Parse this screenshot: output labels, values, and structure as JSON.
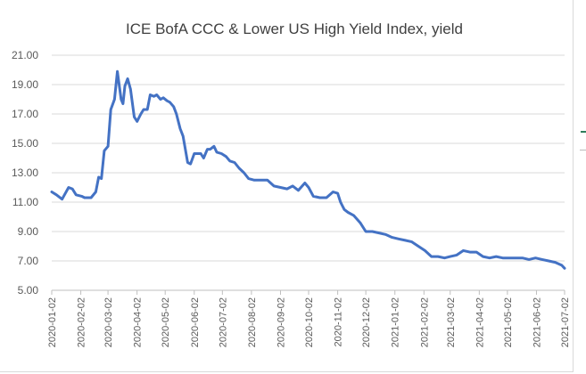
{
  "chart_data": {
    "type": "line",
    "title": "ICE BofA CCC & Lower US High Yield Index, yield",
    "xlabel": "",
    "ylabel": "",
    "ylim": [
      5.0,
      21.0
    ],
    "y_ticks": [
      "5.00",
      "7.00",
      "9.00",
      "11.00",
      "13.00",
      "15.00",
      "17.00",
      "19.00",
      "21.00"
    ],
    "x_ticks": [
      "2020-01-02",
      "2020-02-02",
      "2020-03-02",
      "2020-04-02",
      "2020-05-02",
      "2020-06-02",
      "2020-07-02",
      "2020-08-02",
      "2020-09-02",
      "2020-10-02",
      "2020-11-02",
      "2020-12-02",
      "2021-01-02",
      "2021-02-02",
      "2021-03-02",
      "2021-04-02",
      "2021-05-02",
      "2021-06-02",
      "2021-07-02"
    ],
    "xlim": [
      "2020-01-02",
      "2021-07-02"
    ],
    "grid": "horizontal",
    "series_color": "#4472c4",
    "series": [
      {
        "x": [
          "2020-01-02",
          "2020-01-07",
          "2020-01-13",
          "2020-01-20",
          "2020-01-24",
          "2020-01-28",
          "2020-02-03",
          "2020-02-06",
          "2020-02-10",
          "2020-02-13",
          "2020-02-18",
          "2020-02-21",
          "2020-02-24",
          "2020-02-27",
          "2020-03-02",
          "2020-03-05",
          "2020-03-09",
          "2020-03-12",
          "2020-03-16",
          "2020-03-18",
          "2020-03-20",
          "2020-03-23",
          "2020-03-26",
          "2020-03-30",
          "2020-04-02",
          "2020-04-06",
          "2020-04-09",
          "2020-04-13",
          "2020-04-16",
          "2020-04-20",
          "2020-04-23",
          "2020-04-27",
          "2020-04-30",
          "2020-05-04",
          "2020-05-07",
          "2020-05-11",
          "2020-05-14",
          "2020-05-18",
          "2020-05-21",
          "2020-05-26",
          "2020-05-29",
          "2020-06-02",
          "2020-06-05",
          "2020-06-09",
          "2020-06-12",
          "2020-06-16",
          "2020-06-19",
          "2020-06-23",
          "2020-06-26",
          "2020-07-01",
          "2020-07-06",
          "2020-07-10",
          "2020-07-15",
          "2020-07-20",
          "2020-07-25",
          "2020-07-30",
          "2020-08-05",
          "2020-08-12",
          "2020-08-19",
          "2020-08-26",
          "2020-09-02",
          "2020-09-09",
          "2020-09-15",
          "2020-09-21",
          "2020-09-28",
          "2020-10-02",
          "2020-10-07",
          "2020-10-14",
          "2020-10-21",
          "2020-10-28",
          "2020-11-02",
          "2020-11-05",
          "2020-11-09",
          "2020-11-13",
          "2020-11-19",
          "2020-11-26",
          "2020-12-02",
          "2020-12-09",
          "2020-12-16",
          "2020-12-23",
          "2020-12-30",
          "2021-01-06",
          "2021-01-13",
          "2021-01-20",
          "2021-01-27",
          "2021-02-03",
          "2021-02-10",
          "2021-02-17",
          "2021-02-24",
          "2021-03-02",
          "2021-03-09",
          "2021-03-16",
          "2021-03-23",
          "2021-03-30",
          "2021-04-06",
          "2021-04-13",
          "2021-04-20",
          "2021-04-27",
          "2021-05-04",
          "2021-05-11",
          "2021-05-18",
          "2021-05-25",
          "2021-06-01",
          "2021-06-08",
          "2021-06-15",
          "2021-06-22",
          "2021-06-29",
          "2021-07-02"
        ],
        "y": [
          11.7,
          11.5,
          11.2,
          12.0,
          11.9,
          11.5,
          11.4,
          11.3,
          11.3,
          11.3,
          11.7,
          12.7,
          12.6,
          14.5,
          14.8,
          17.3,
          18.0,
          19.9,
          18.0,
          17.7,
          18.9,
          19.4,
          18.7,
          16.8,
          16.5,
          17.0,
          17.3,
          17.3,
          18.3,
          18.2,
          18.3,
          18.0,
          18.1,
          17.9,
          17.8,
          17.5,
          17.0,
          16.0,
          15.5,
          13.7,
          13.6,
          14.3,
          14.3,
          14.3,
          14.0,
          14.6,
          14.6,
          14.8,
          14.4,
          14.3,
          14.1,
          13.8,
          13.7,
          13.3,
          13.0,
          12.6,
          12.5,
          12.5,
          12.5,
          12.1,
          12.0,
          11.9,
          12.1,
          11.8,
          12.3,
          12.0,
          11.4,
          11.3,
          11.3,
          11.7,
          11.6,
          11.0,
          10.5,
          10.3,
          10.1,
          9.6,
          9.0,
          9.0,
          8.9,
          8.8,
          8.6,
          8.5,
          8.4,
          8.3,
          8.0,
          7.7,
          7.3,
          7.3,
          7.2,
          7.3,
          7.4,
          7.7,
          7.6,
          7.6,
          7.3,
          7.2,
          7.3,
          7.2,
          7.2,
          7.2,
          7.2,
          7.1,
          7.2,
          7.1,
          7.0,
          6.9,
          6.7,
          6.5
        ]
      }
    ]
  }
}
